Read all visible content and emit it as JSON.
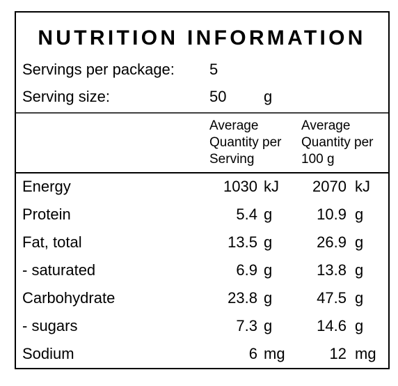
{
  "title": "NUTRITION INFORMATION",
  "servings": {
    "label": "Servings per package:",
    "value": "5"
  },
  "serving_size": {
    "label": "Serving size:",
    "value": "50",
    "unit": "g"
  },
  "columns": [
    [
      "Average",
      "Quantity per",
      "Serving"
    ],
    [
      "Average",
      "Quantity per",
      "100 g"
    ]
  ],
  "rows": [
    [
      "Energy",
      "1030",
      "kJ",
      "2070",
      "kJ"
    ],
    [
      "Protein",
      "5.4",
      "g",
      "10.9",
      "g"
    ],
    [
      "Fat, total",
      "13.5",
      "g",
      "26.9",
      "g"
    ],
    [
      "- saturated",
      "6.9",
      "g",
      "13.8",
      "g"
    ],
    [
      "Carbohydrate",
      "23.8",
      "g",
      "47.5",
      "g"
    ],
    [
      "- sugars",
      "7.3",
      "g",
      "14.6",
      "g"
    ],
    [
      "Sodium",
      "6",
      "mg",
      "12",
      "mg"
    ]
  ]
}
